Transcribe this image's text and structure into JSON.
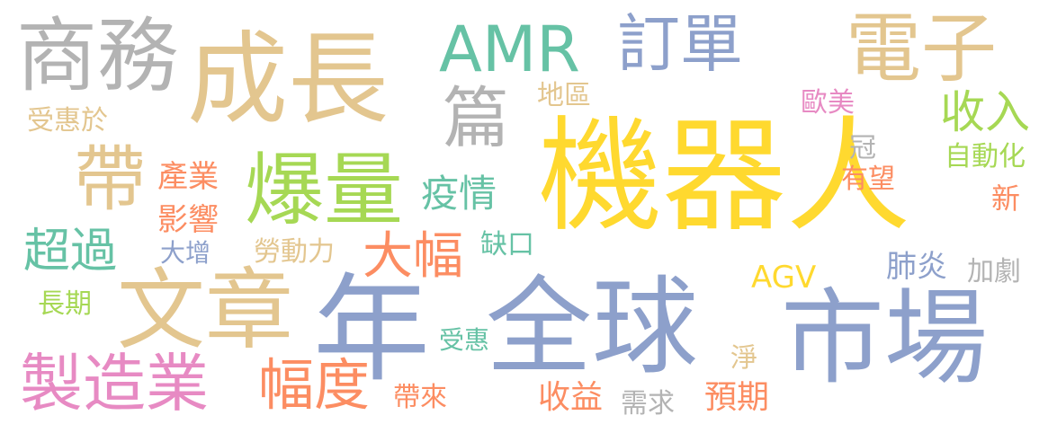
{
  "palette": {
    "tan": "#E3C68F",
    "yellow": "#FFD92F",
    "blue": "#8DA0CB",
    "teal": "#66C2A5",
    "green": "#A6D854",
    "orange": "#FC8D62",
    "pink": "#E78AC3",
    "gray": "#B3B3B3"
  },
  "words": [
    {
      "text": "機器人",
      "color": "yellow"
    },
    {
      "text": "成長",
      "color": "tan"
    },
    {
      "text": "全球",
      "color": "blue"
    },
    {
      "text": "年",
      "color": "blue"
    },
    {
      "text": "市場",
      "color": "blue"
    },
    {
      "text": "文章",
      "color": "tan"
    },
    {
      "text": "爆量",
      "color": "green"
    },
    {
      "text": "電子",
      "color": "tan"
    },
    {
      "text": "商務",
      "color": "gray"
    },
    {
      "text": "製造業",
      "color": "pink"
    },
    {
      "text": "AMR",
      "color": "teal"
    },
    {
      "text": "訂單",
      "color": "blue"
    },
    {
      "text": "篇",
      "color": "gray"
    },
    {
      "text": "帶",
      "color": "tan"
    },
    {
      "text": "幅度",
      "color": "orange"
    },
    {
      "text": "大幅",
      "color": "orange"
    },
    {
      "text": "超過",
      "color": "teal"
    },
    {
      "text": "疫情",
      "color": "teal"
    },
    {
      "text": "收入",
      "color": "green"
    },
    {
      "text": "AGV",
      "color": "yellow"
    },
    {
      "text": "肺炎",
      "color": "blue"
    },
    {
      "text": "收益",
      "color": "orange"
    },
    {
      "text": "預期",
      "color": "orange"
    },
    {
      "text": "產業",
      "color": "orange"
    },
    {
      "text": "影響",
      "color": "orange"
    },
    {
      "text": "受惠於",
      "color": "tan"
    },
    {
      "text": "地區",
      "color": "tan"
    },
    {
      "text": "歐美",
      "color": "pink"
    },
    {
      "text": "自動化",
      "color": "green"
    },
    {
      "text": "加劇",
      "color": "gray"
    },
    {
      "text": "勞動力",
      "color": "tan"
    },
    {
      "text": "帶來",
      "color": "orange"
    },
    {
      "text": "需求",
      "color": "gray"
    },
    {
      "text": "長期",
      "color": "green"
    },
    {
      "text": "缺口",
      "color": "teal"
    },
    {
      "text": "冠",
      "color": "gray"
    },
    {
      "text": "有望",
      "color": "orange"
    },
    {
      "text": "新",
      "color": "orange"
    },
    {
      "text": "大增",
      "color": "blue"
    },
    {
      "text": "受惠",
      "color": "teal"
    },
    {
      "text": "淨",
      "color": "tan"
    }
  ]
}
